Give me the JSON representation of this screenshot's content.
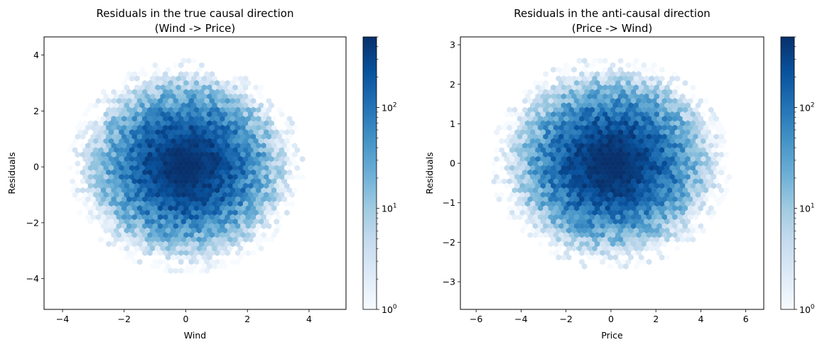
{
  "chart_data": [
    {
      "type": "heatmap",
      "subtype": "hexbin",
      "title": "Residuals in the true causal direction",
      "subtitle": "(Wind -> Price)",
      "xlabel": "Wind",
      "ylabel": "Residuals",
      "xlim": [
        -4.6,
        5.2
      ],
      "ylim": [
        -5.1,
        4.65
      ],
      "xticks": [
        -4,
        -2,
        0,
        2,
        4
      ],
      "xtick_labels": [
        "−4",
        "−2",
        "0",
        "2",
        "4"
      ],
      "yticks": [
        -4,
        -2,
        0,
        2,
        4
      ],
      "ytick_labels": [
        "−4",
        "−2",
        "0",
        "2",
        "4"
      ],
      "distribution": {
        "center_x": 0,
        "center_y": 0,
        "std_x": 1.0,
        "std_y": 1.0,
        "extent_x": [
          -4.2,
          4.6
        ],
        "extent_y": [
          -4.7,
          4.3
        ]
      },
      "colorbar": {
        "scale": "log",
        "min": 1,
        "max": 500,
        "ticks": [
          1,
          10,
          100
        ],
        "tick_labels": [
          "10",
          "10",
          "10"
        ],
        "tick_exponents": [
          "0",
          "1",
          "2"
        ],
        "colormap": "Blues"
      },
      "grid": false,
      "legend": "none"
    },
    {
      "type": "heatmap",
      "subtype": "hexbin",
      "title": "Residuals in the anti-causal direction",
      "subtitle": "(Price -> Wind)",
      "xlabel": "Price",
      "ylabel": "Residuals",
      "xlim": [
        -6.7,
        6.8
      ],
      "ylim": [
        -3.7,
        3.2
      ],
      "xticks": [
        -6,
        -4,
        -2,
        0,
        2,
        4,
        6
      ],
      "xtick_labels": [
        "−6",
        "−4",
        "−2",
        "0",
        "2",
        "4",
        "6"
      ],
      "yticks": [
        -3,
        -2,
        -1,
        0,
        1,
        2,
        3
      ],
      "ytick_labels": [
        "−3",
        "−2",
        "−1",
        "0",
        "1",
        "2",
        "3"
      ],
      "distribution": {
        "center_x": 0,
        "center_y": 0,
        "std_x": 1.4,
        "std_y": 0.71,
        "extent_x": [
          -6.1,
          6.2
        ],
        "extent_y": [
          -3.4,
          2.9
        ]
      },
      "colorbar": {
        "scale": "log",
        "min": 1,
        "max": 500,
        "ticks": [
          1,
          10,
          100
        ],
        "tick_labels": [
          "10",
          "10",
          "10"
        ],
        "tick_exponents": [
          "0",
          "1",
          "2"
        ],
        "colormap": "Blues"
      },
      "grid": false,
      "legend": "none"
    }
  ]
}
